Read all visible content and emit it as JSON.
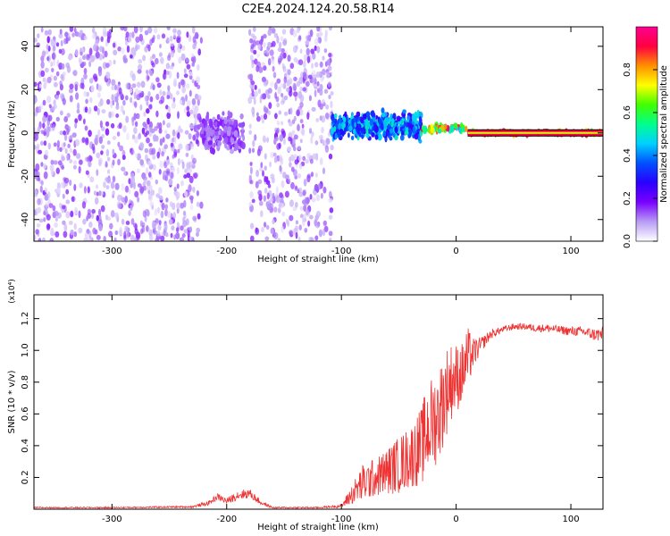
{
  "title": "C2E4.2024.124.20.58.R14",
  "chart_data": [
    {
      "type": "heatmap",
      "xlabel": "Height of straight line (km)",
      "ylabel": "Frequency (Hz)",
      "xlim": [
        -368,
        128
      ],
      "ylim": [
        -50,
        49
      ],
      "x_ticks": [
        -300,
        -200,
        -100,
        0,
        100
      ],
      "y_ticks": [
        -40,
        -20,
        0,
        20,
        40
      ],
      "colorbar": {
        "label": "Normalized spectral amplitude",
        "range": [
          0,
          1
        ],
        "ticks": [
          "0.0",
          "0.2",
          "0.4",
          "0.6",
          "0.8"
        ],
        "tick_values": [
          0,
          0.2,
          0.4,
          0.6,
          0.8
        ],
        "colormap": [
          "#ffffff",
          "#b89cf5",
          "#7a00ff",
          "#2a00ff",
          "#0050ff",
          "#00d0ff",
          "#00ff90",
          "#40ff00",
          "#ffff00",
          "#ff9000",
          "#ff0040",
          "#ff0090"
        ]
      },
      "regions": [
        {
          "x": [
            -368,
            -222
          ],
          "freq_spread": 50,
          "typical_amplitude": 0.1,
          "note": "broadband noise"
        },
        {
          "x": [
            -222,
            -185
          ],
          "freq_center": 0,
          "freq_spread": 12,
          "typical_amplitude": 0.15
        },
        {
          "x": [
            -180,
            -108
          ],
          "freq_spread": 50,
          "typical_amplitude": 0.1
        },
        {
          "x": [
            -108,
            -30
          ],
          "freq_center": 3,
          "freq_spread": 8,
          "typical_amplitude": 0.45
        },
        {
          "x": [
            -30,
            10
          ],
          "freq_center": 2,
          "freq_spread": 2,
          "typical_amplitude": 0.85
        },
        {
          "x": [
            10,
            128
          ],
          "freq_center": 0,
          "freq_spread": 1,
          "typical_amplitude": 1.0,
          "note": "sharp line at 0 Hz"
        }
      ]
    },
    {
      "type": "line",
      "xlabel": "Height of straight line (km)",
      "ylabel": "SNR (10 * v/v)",
      "y_multiplier": "(x10⁴)",
      "xlim": [
        -368,
        128
      ],
      "ylim": [
        0,
        1.35
      ],
      "x_ticks": [
        -300,
        -200,
        -100,
        0,
        100
      ],
      "y_ticks": [
        0.2,
        0.4,
        0.6,
        0.8,
        1.0,
        1.2
      ],
      "y_tick_labels": [
        "0.2",
        "0.4",
        "0.6",
        "0.8",
        "1.0",
        "1.2"
      ],
      "color": "#ee3333",
      "series": [
        {
          "x": [
            -368,
            -300,
            -230,
            -215,
            -208,
            -200,
            -190,
            -180,
            -170,
            -160,
            -120,
            -100,
            -95,
            -90,
            -85,
            -80,
            -70,
            -60,
            -50,
            -40,
            -30,
            -25,
            -20,
            -15,
            -10,
            -5,
            0,
            5,
            10,
            15,
            20,
            25,
            30,
            40,
            50,
            60,
            70,
            80,
            90,
            100,
            110,
            120,
            128
          ],
          "y": [
            0.01,
            0.01,
            0.015,
            0.04,
            0.08,
            0.05,
            0.09,
            0.1,
            0.04,
            0.01,
            0.01,
            0.02,
            0.06,
            0.1,
            0.14,
            0.17,
            0.2,
            0.24,
            0.28,
            0.33,
            0.4,
            0.5,
            0.55,
            0.6,
            0.72,
            0.8,
            0.83,
            0.85,
            0.95,
            0.98,
            1.02,
            1.06,
            1.1,
            1.13,
            1.15,
            1.15,
            1.14,
            1.14,
            1.13,
            1.12,
            1.12,
            1.1,
            1.1
          ],
          "noise": [
            0.004,
            0.004,
            0.006,
            0.015,
            0.02,
            0.02,
            0.03,
            0.03,
            0.015,
            0.005,
            0.005,
            0.01,
            0.04,
            0.07,
            0.1,
            0.13,
            0.12,
            0.15,
            0.18,
            0.2,
            0.25,
            0.3,
            0.3,
            0.3,
            0.3,
            0.25,
            0.22,
            0.2,
            0.2,
            0.1,
            0.06,
            0.04,
            0.03,
            0.02,
            0.02,
            0.02,
            0.025,
            0.025,
            0.025,
            0.03,
            0.03,
            0.04,
            0.05
          ]
        }
      ]
    }
  ]
}
